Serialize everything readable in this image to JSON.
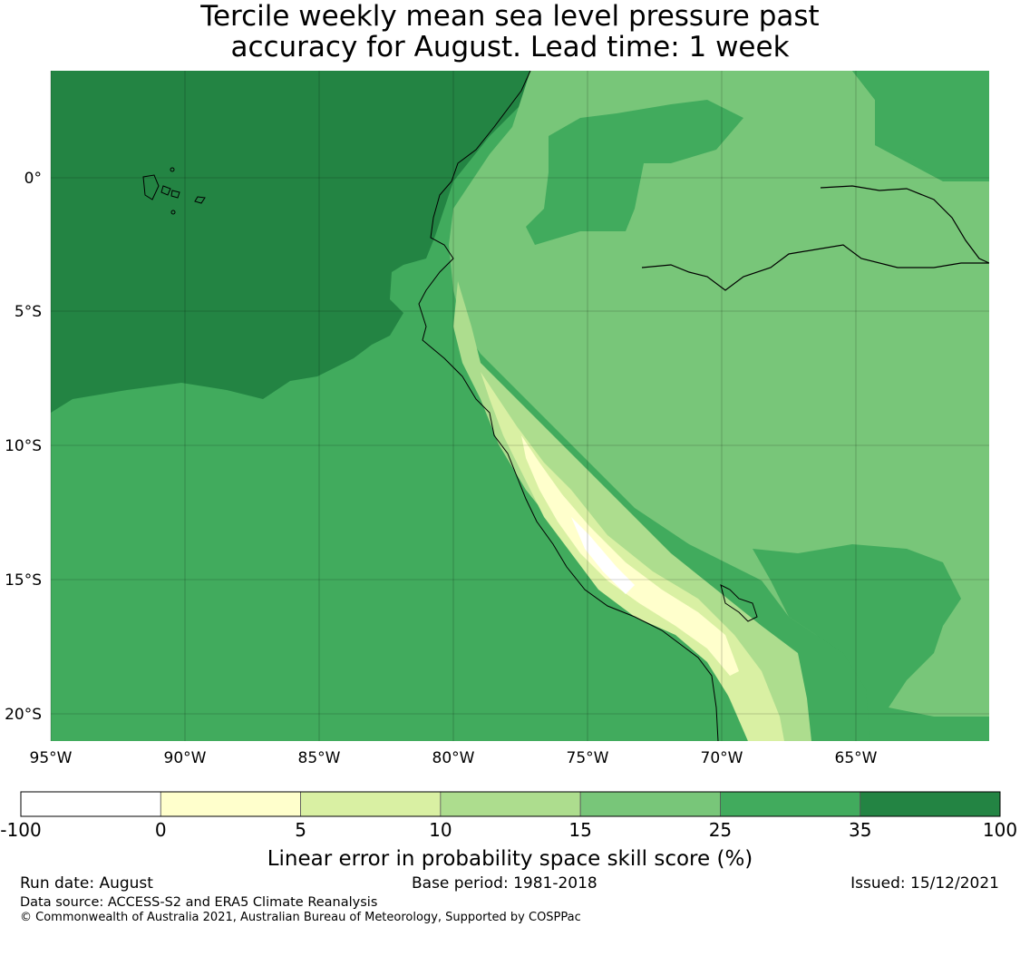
{
  "title_line1": "Tercile weekly mean sea level pressure past",
  "title_line2": "accuracy for August. Lead time: 1 week",
  "map": {
    "lon_labels": [
      "95°W",
      "90°W",
      "85°W",
      "80°W",
      "75°W",
      "70°W",
      "65°W"
    ],
    "lat_labels": [
      "0°",
      "5°S",
      "10°S",
      "15°S",
      "20°S"
    ]
  },
  "colorbar": {
    "boundaries": [
      "-100",
      "0",
      "5",
      "10",
      "15",
      "25",
      "35",
      "100"
    ],
    "colors": [
      "#ffffff",
      "#ffffcc",
      "#d9f0a3",
      "#addd8e",
      "#78c679",
      "#41ab5d",
      "#238443"
    ],
    "title": "Linear error in probability space skill score (%)"
  },
  "footer": {
    "run_date": "Run date: August",
    "base_period": "Base period: 1981-2018",
    "issued": "Issued: 15/12/2021",
    "data_source": "Data source: ACCESS-S2 and ERA5 Climate Reanalysis",
    "copyright": "© Commonwealth of Australia 2021, Australian Bureau of Meteorology, Supported by COSPPac"
  }
}
